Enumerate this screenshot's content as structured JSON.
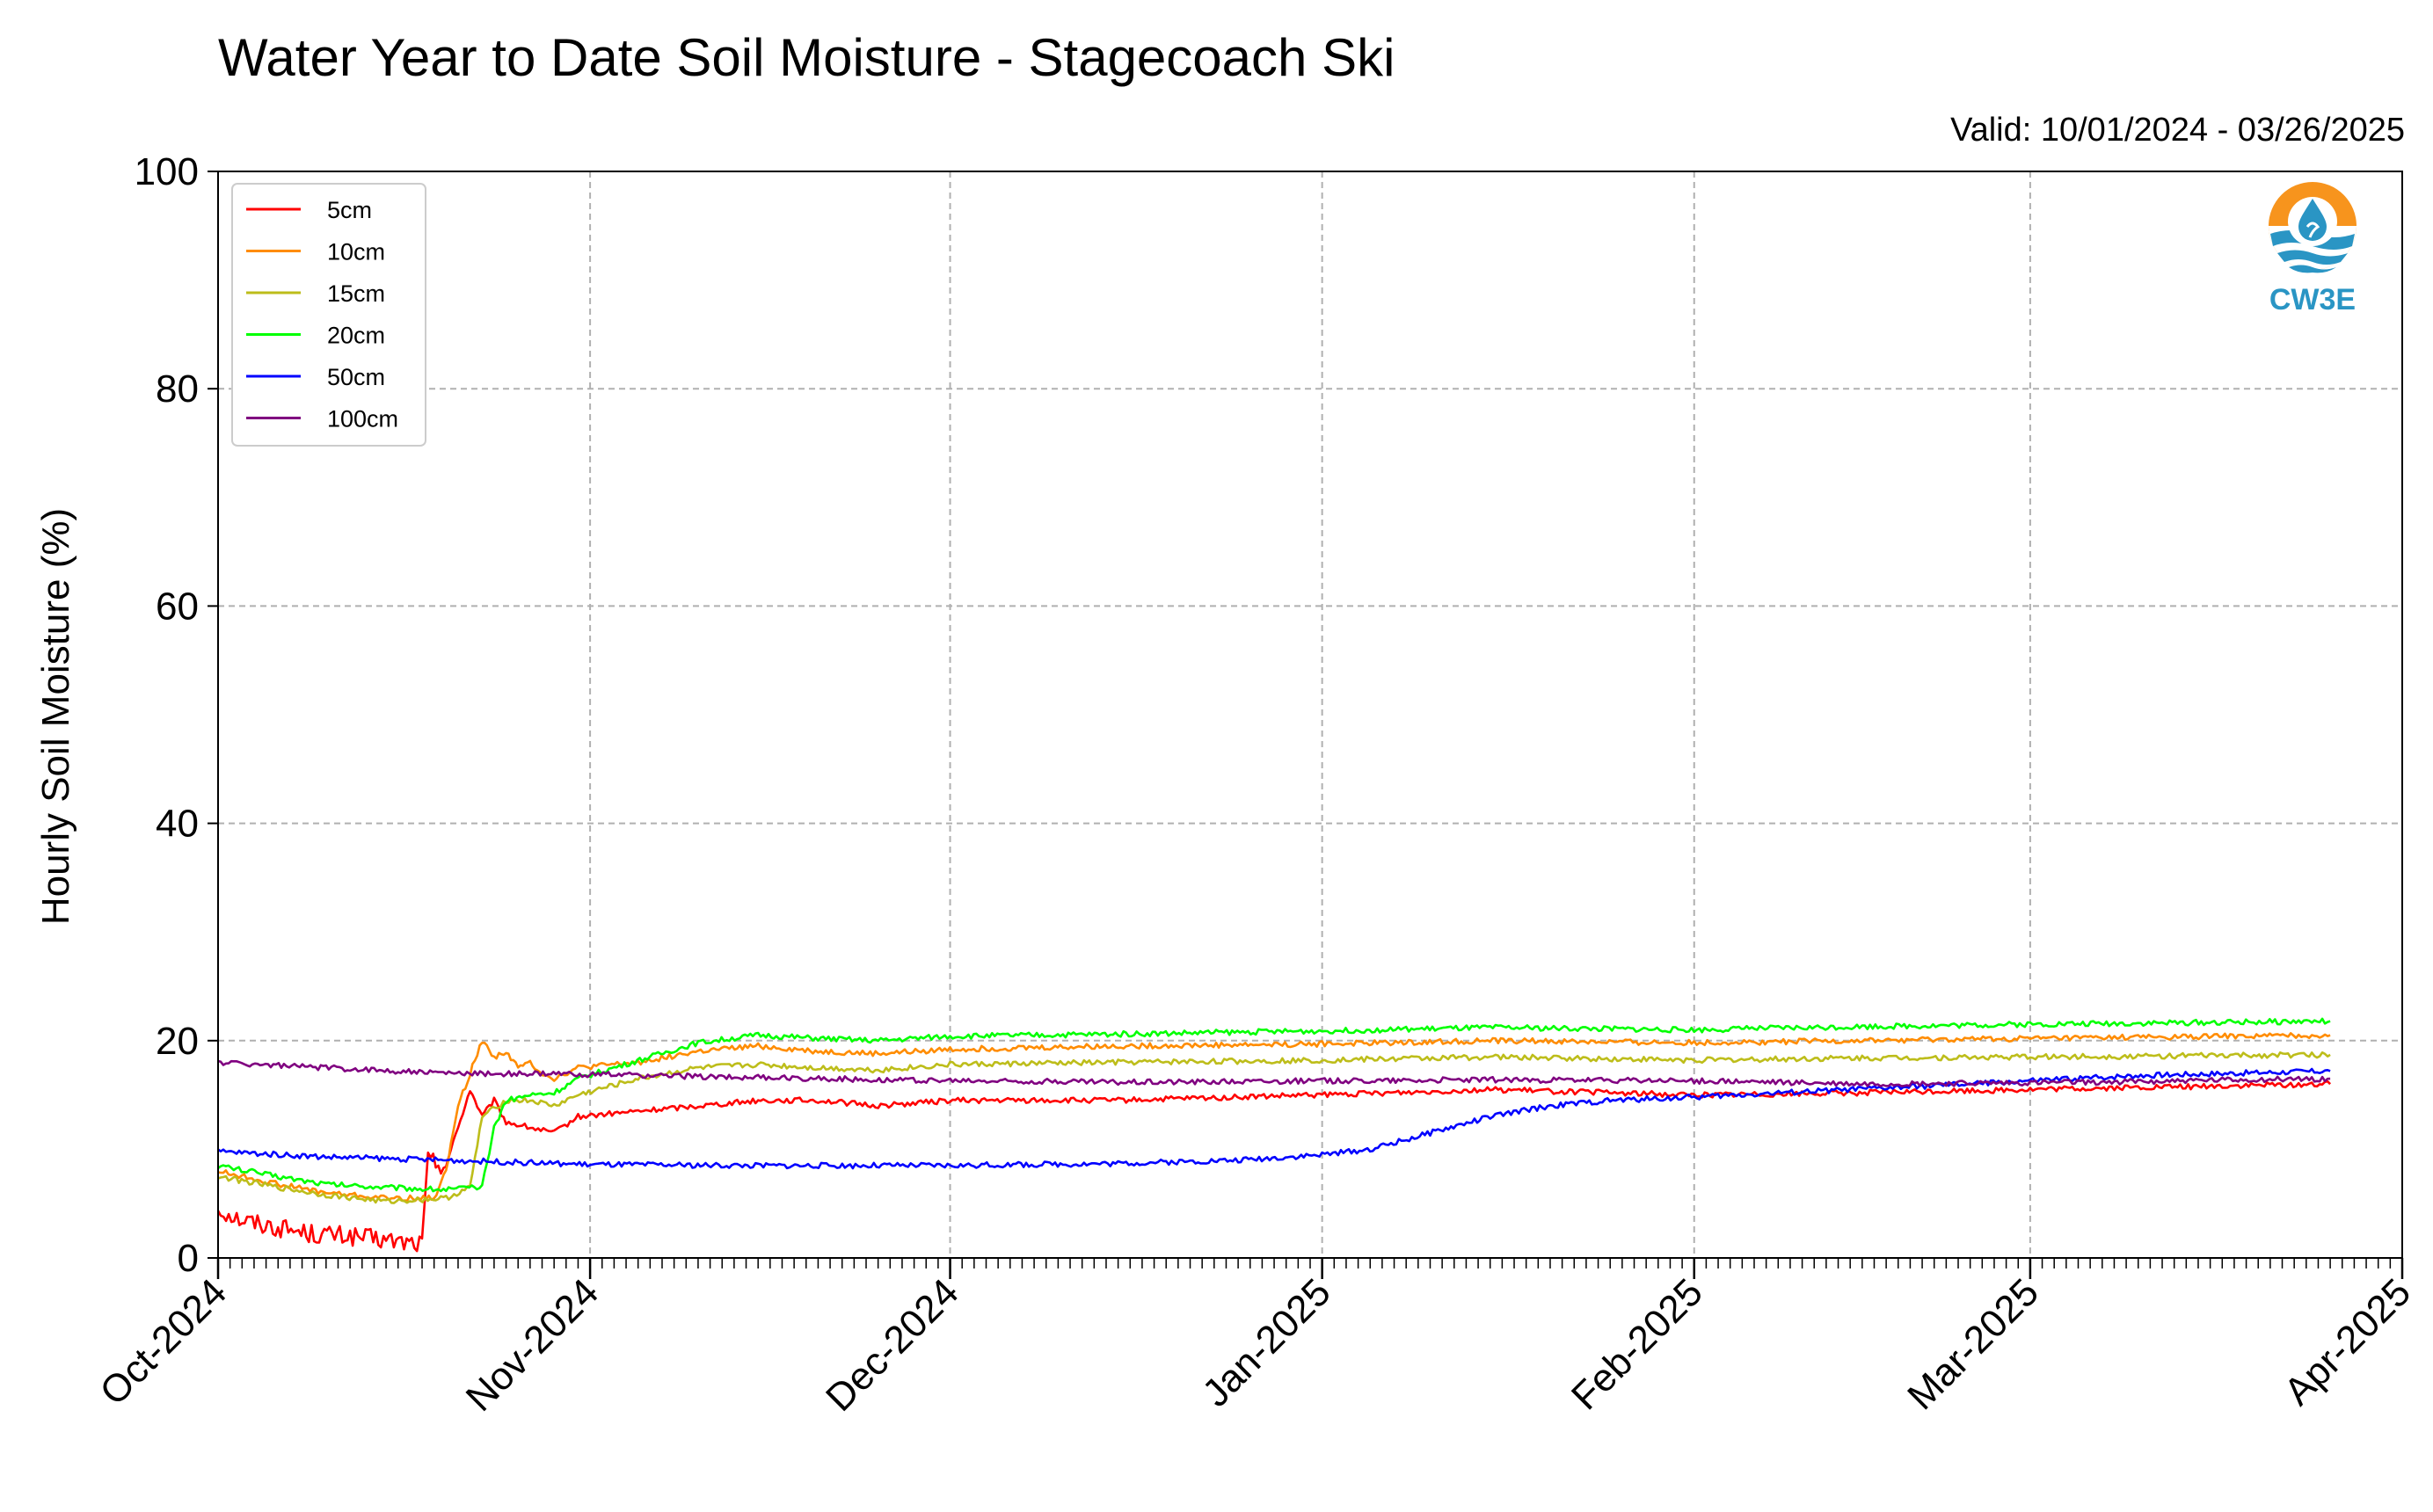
{
  "chart_data": {
    "type": "line",
    "title": "Water Year to Date Soil Moisture - Stagecoach Ski",
    "subtitle": "Valid: 10/01/2024 - 03/26/2025",
    "ylabel": "Hourly Soil Moisture (%)",
    "ylim": [
      0,
      100
    ],
    "yticks": [
      "0",
      "20",
      "40",
      "60",
      "80",
      "100"
    ],
    "xlim": [
      "2024-10-01",
      "2025-04-01"
    ],
    "xticks": [
      {
        "date": "2024-10-01",
        "label": "Oct-2024"
      },
      {
        "date": "2024-11-01",
        "label": "Nov-2024"
      },
      {
        "date": "2024-12-01",
        "label": "Dec-2024"
      },
      {
        "date": "2025-01-01",
        "label": "Jan-2025"
      },
      {
        "date": "2025-02-01",
        "label": "Feb-2025"
      },
      {
        "date": "2025-03-01",
        "label": "Mar-2025"
      },
      {
        "date": "2025-04-01",
        "label": "Apr-2025"
      }
    ],
    "grid": true,
    "legend_position": "top-left",
    "series": [
      {
        "name": "5cm",
        "color": "#ff0000",
        "points": [
          [
            "2024-10-01",
            4.5
          ],
          [
            "2024-10-03",
            3.5
          ],
          [
            "2024-10-06",
            2.8
          ],
          [
            "2024-10-09",
            2.2
          ],
          [
            "2024-10-12",
            2.0
          ],
          [
            "2024-10-15",
            1.6
          ],
          [
            "2024-10-18",
            1.3
          ],
          [
            "2024-10-18T12",
            9.0
          ],
          [
            "2024-10-20",
            8.5
          ],
          [
            "2024-10-21",
            12.0
          ],
          [
            "2024-10-22",
            15.5
          ],
          [
            "2024-10-23",
            13.0
          ],
          [
            "2024-10-24",
            14.5
          ],
          [
            "2024-10-25",
            12.5
          ],
          [
            "2024-10-27",
            12.0
          ],
          [
            "2024-10-29",
            11.5
          ],
          [
            "2024-10-31",
            13.0
          ],
          [
            "2024-11-05",
            13.5
          ],
          [
            "2024-11-10",
            14.0
          ],
          [
            "2024-11-15",
            14.5
          ],
          [
            "2024-11-20",
            14.5
          ],
          [
            "2024-11-25",
            14.0
          ],
          [
            "2024-12-01",
            14.5
          ],
          [
            "2024-12-15",
            14.5
          ],
          [
            "2025-01-01",
            15.0
          ],
          [
            "2025-01-15",
            15.5
          ],
          [
            "2025-02-01",
            15.0
          ],
          [
            "2025-02-15",
            15.2
          ],
          [
            "2025-03-01",
            15.5
          ],
          [
            "2025-03-26",
            16.0
          ]
        ]
      },
      {
        "name": "10cm",
        "color": "#ff8c00",
        "points": [
          [
            "2024-10-01",
            8.0
          ],
          [
            "2024-10-06",
            6.8
          ],
          [
            "2024-10-10",
            6.0
          ],
          [
            "2024-10-15",
            5.5
          ],
          [
            "2024-10-19",
            5.5
          ],
          [
            "2024-10-20",
            8.0
          ],
          [
            "2024-10-21",
            14.0
          ],
          [
            "2024-10-22",
            17.0
          ],
          [
            "2024-10-23",
            20.0
          ],
          [
            "2024-10-24",
            18.5
          ],
          [
            "2024-10-25",
            19.0
          ],
          [
            "2024-10-26",
            17.5
          ],
          [
            "2024-10-27",
            18.0
          ],
          [
            "2024-10-28",
            17.0
          ],
          [
            "2024-10-29",
            16.5
          ],
          [
            "2024-10-31",
            17.5
          ],
          [
            "2024-11-05",
            18.0
          ],
          [
            "2024-11-10",
            19.0
          ],
          [
            "2024-11-15",
            19.5
          ],
          [
            "2024-11-20",
            19.0
          ],
          [
            "2024-11-25",
            18.8
          ],
          [
            "2024-12-01",
            19.2
          ],
          [
            "2024-12-15",
            19.5
          ],
          [
            "2025-01-01",
            19.7
          ],
          [
            "2025-01-15",
            20.0
          ],
          [
            "2025-02-01",
            19.8
          ],
          [
            "2025-02-15",
            20.0
          ],
          [
            "2025-03-01",
            20.2
          ],
          [
            "2025-03-26",
            20.5
          ]
        ]
      },
      {
        "name": "15cm",
        "color": "#bdbd1a",
        "points": [
          [
            "2024-10-01",
            7.5
          ],
          [
            "2024-10-06",
            6.5
          ],
          [
            "2024-10-10",
            5.8
          ],
          [
            "2024-10-15",
            5.2
          ],
          [
            "2024-10-20",
            5.5
          ],
          [
            "2024-10-22",
            6.5
          ],
          [
            "2024-10-23",
            13.0
          ],
          [
            "2024-10-25",
            14.5
          ],
          [
            "2024-10-27",
            14.5
          ],
          [
            "2024-10-29",
            14.0
          ],
          [
            "2024-10-31",
            15.0
          ],
          [
            "2024-11-05",
            16.5
          ],
          [
            "2024-11-10",
            17.5
          ],
          [
            "2024-11-15",
            17.8
          ],
          [
            "2024-11-20",
            17.5
          ],
          [
            "2024-11-25",
            17.3
          ],
          [
            "2024-12-01",
            17.8
          ],
          [
            "2024-12-15",
            18.0
          ],
          [
            "2025-01-01",
            18.2
          ],
          [
            "2025-01-15",
            18.5
          ],
          [
            "2025-02-01",
            18.2
          ],
          [
            "2025-02-15",
            18.4
          ],
          [
            "2025-03-01",
            18.5
          ],
          [
            "2025-03-26",
            18.7
          ]
        ]
      },
      {
        "name": "20cm",
        "color": "#00ff00",
        "points": [
          [
            "2024-10-01",
            8.5
          ],
          [
            "2024-10-06",
            7.5
          ],
          [
            "2024-10-10",
            6.8
          ],
          [
            "2024-10-15",
            6.5
          ],
          [
            "2024-10-20",
            6.3
          ],
          [
            "2024-10-23",
            6.5
          ],
          [
            "2024-10-24",
            12.0
          ],
          [
            "2024-10-25",
            14.5
          ],
          [
            "2024-10-27",
            15.0
          ],
          [
            "2024-10-29",
            15.2
          ],
          [
            "2024-10-31",
            16.5
          ],
          [
            "2024-11-03",
            17.5
          ],
          [
            "2024-11-06",
            18.5
          ],
          [
            "2024-11-10",
            19.8
          ],
          [
            "2024-11-15",
            20.5
          ],
          [
            "2024-11-20",
            20.2
          ],
          [
            "2024-11-25",
            20.0
          ],
          [
            "2024-12-01",
            20.4
          ],
          [
            "2024-12-15",
            20.6
          ],
          [
            "2025-01-01",
            20.9
          ],
          [
            "2025-01-15",
            21.2
          ],
          [
            "2025-02-01",
            21.0
          ],
          [
            "2025-02-15",
            21.3
          ],
          [
            "2025-03-01",
            21.5
          ],
          [
            "2025-03-26",
            21.8
          ]
        ]
      },
      {
        "name": "50cm",
        "color": "#0000ff",
        "points": [
          [
            "2024-10-01",
            9.8
          ],
          [
            "2024-10-10",
            9.3
          ],
          [
            "2024-10-20",
            9.0
          ],
          [
            "2024-10-26",
            8.8
          ],
          [
            "2024-11-01",
            8.6
          ],
          [
            "2024-11-15",
            8.5
          ],
          [
            "2024-12-01",
            8.5
          ],
          [
            "2024-12-15",
            8.7
          ],
          [
            "2024-12-25",
            9.0
          ],
          [
            "2025-01-01",
            9.5
          ],
          [
            "2025-01-05",
            10.0
          ],
          [
            "2025-01-10",
            11.5
          ],
          [
            "2025-01-15",
            13.0
          ],
          [
            "2025-01-20",
            14.0
          ],
          [
            "2025-01-25",
            14.5
          ],
          [
            "2025-02-01",
            14.8
          ],
          [
            "2025-02-10",
            15.3
          ],
          [
            "2025-02-20",
            15.8
          ],
          [
            "2025-03-01",
            16.3
          ],
          [
            "2025-03-10",
            16.8
          ],
          [
            "2025-03-26",
            17.2
          ]
        ]
      },
      {
        "name": "100cm",
        "color": "#800080",
        "points": [
          [
            "2024-10-01",
            18.0
          ],
          [
            "2024-10-10",
            17.5
          ],
          [
            "2024-10-20",
            17.0
          ],
          [
            "2024-11-01",
            16.9
          ],
          [
            "2024-11-15",
            16.6
          ],
          [
            "2024-12-01",
            16.3
          ],
          [
            "2024-12-15",
            16.2
          ],
          [
            "2025-01-01",
            16.3
          ],
          [
            "2025-01-15",
            16.4
          ],
          [
            "2025-02-01",
            16.3
          ],
          [
            "2025-02-15",
            16.0
          ],
          [
            "2025-03-01",
            16.1
          ],
          [
            "2025-03-26",
            16.5
          ]
        ]
      }
    ]
  },
  "logo": {
    "text": "CW3E"
  }
}
